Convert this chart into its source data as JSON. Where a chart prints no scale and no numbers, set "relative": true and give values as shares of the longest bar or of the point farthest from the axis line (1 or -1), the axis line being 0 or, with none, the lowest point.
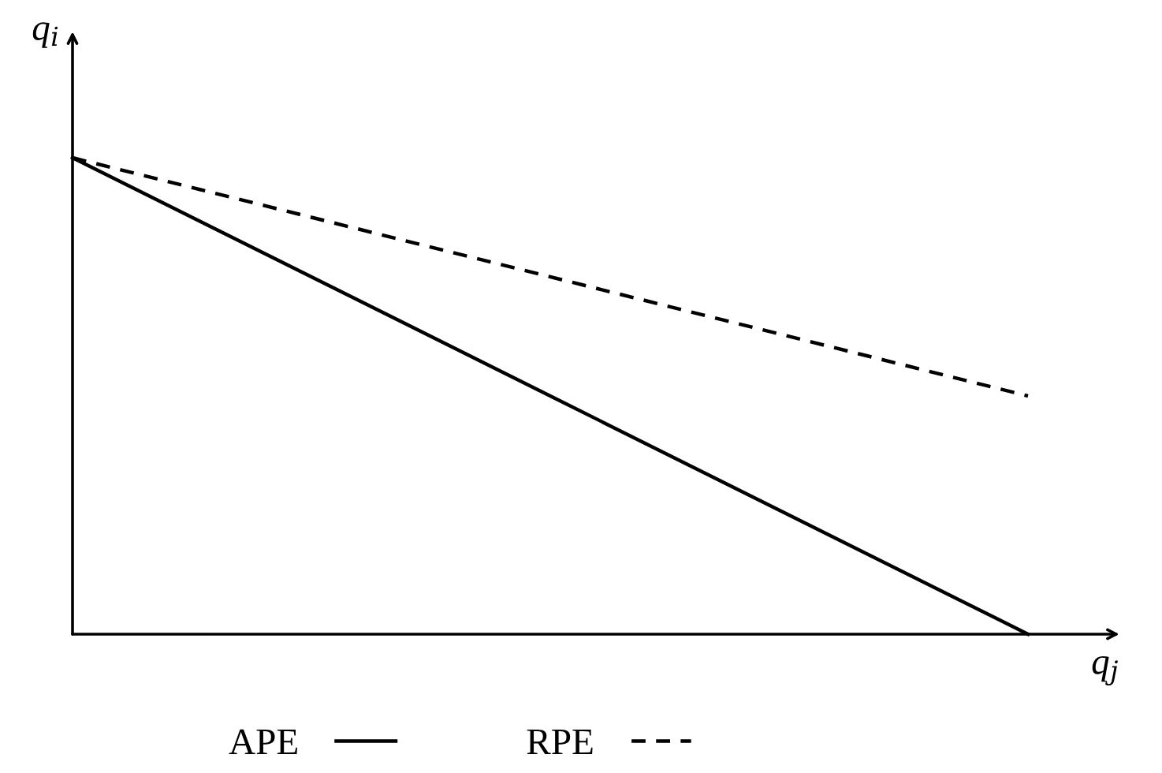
{
  "chart_data": {
    "type": "line",
    "relative": true,
    "xlabel": "q$_{j}$",
    "ylabel": "q$_{i}$",
    "categories": [
      null,
      null
    ],
    "series": [
      {
        "name": "APE",
        "color": "#000000",
        "line_style": "solid",
        "values": [
          1,
          0
        ]
      },
      {
        "name": "RPE",
        "color": "#000000",
        "line_style": "dashed",
        "values": [
          1,
          0.5
        ]
      }
    ],
    "legend": "bottom"
  }
}
